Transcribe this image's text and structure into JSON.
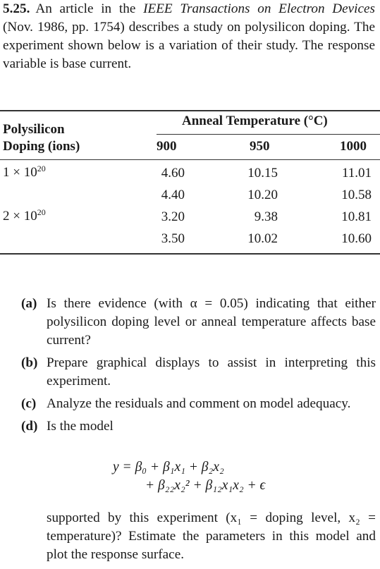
{
  "problem": {
    "number": "5.25.",
    "intro_a": "An article in the ",
    "journal": "IEEE Transactions on Electron Devices",
    "intro_b": " (Nov. 1986, pp. 1754) describes a study on polysilicon doping. The experiment shown below is a variation of their study. The response variable is base current."
  },
  "table": {
    "row_header_line1": "Polysilicon",
    "row_header_line2": "Doping (ions)",
    "col_group_header": "Anneal Temperature (°C)",
    "columns": [
      "900",
      "950",
      "1000"
    ],
    "rows": [
      {
        "doping_base": "1 × 10",
        "doping_exp": "20",
        "values": [
          "4.60",
          "10.15",
          "11.01"
        ]
      },
      {
        "doping_base": "",
        "doping_exp": "",
        "values": [
          "4.40",
          "10.20",
          "10.58"
        ]
      },
      {
        "doping_base": "2 × 10",
        "doping_exp": "20",
        "values": [
          "3.20",
          "9.38",
          "10.81"
        ]
      },
      {
        "doping_base": "",
        "doping_exp": "",
        "values": [
          "3.50",
          "10.02",
          "10.60"
        ]
      }
    ]
  },
  "questions": [
    {
      "label": "(a)",
      "text": "Is there evidence (with α = 0.05) indicating that either polysilicon doping level or anneal temperature affects base current?"
    },
    {
      "label": "(b)",
      "text": "Prepare graphical displays to assist in interpreting this experiment."
    },
    {
      "label": "(c)",
      "text": "Analyze the residuals and comment on model adequacy."
    },
    {
      "label": "(d)",
      "text": "Is the model"
    }
  ],
  "model": {
    "line1": "y = β₀ + β₁x₁ + β₂x₂",
    "line2": "+ β₂₂x₂² + β₁₂x₁x₂ + ϵ"
  },
  "tail": "supported by this experiment (x₁ = doping level, x₂ = temperature)? Estimate the parameters in this model and plot the response surface."
}
